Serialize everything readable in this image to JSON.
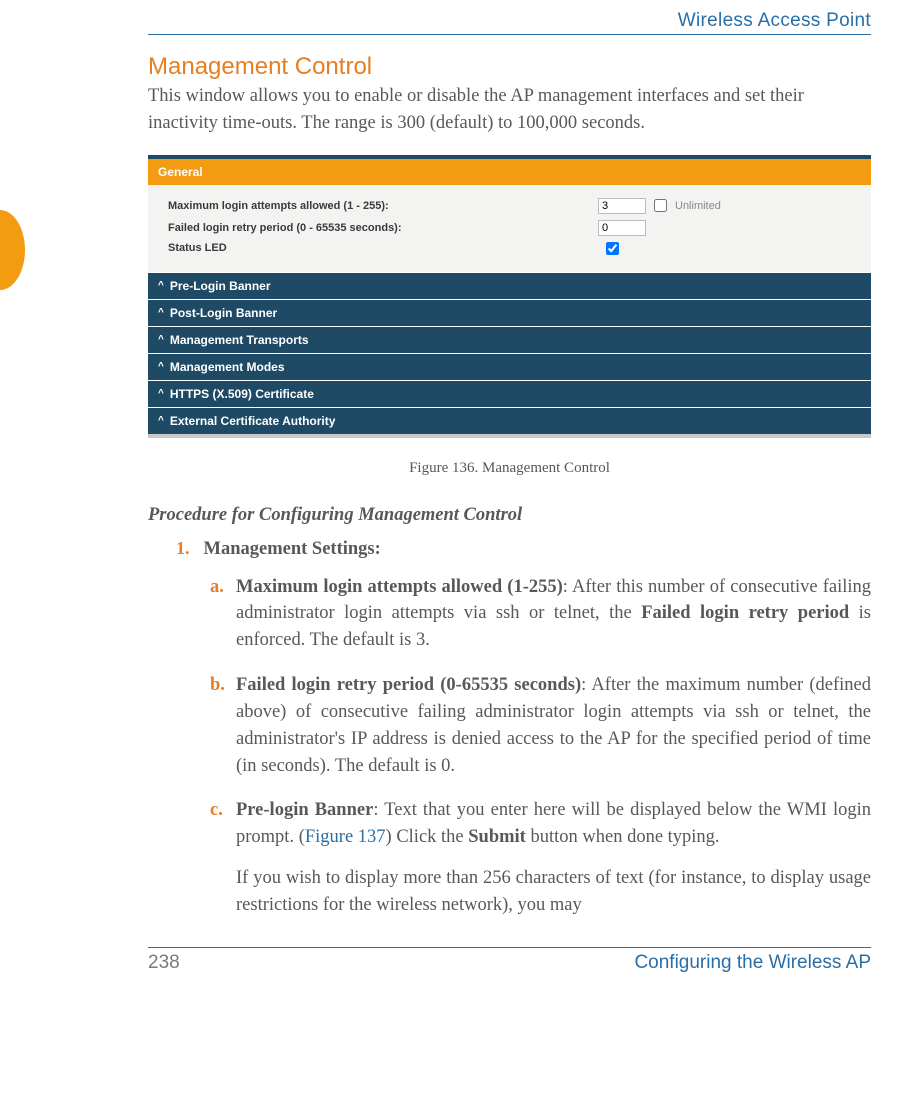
{
  "runningHead": "Wireless Access Point",
  "sectionTitle": "Management Control",
  "intro": "This window allows you to enable or disable the AP management interfaces and set their inactivity time-outs. The range is 300 (default) to 100,000 seconds.",
  "screenshot": {
    "generalHeader": "General",
    "rows": {
      "maxAttempts": {
        "label": "Maximum login attempts allowed (1 - 255):",
        "value": "3",
        "checkboxLabel": "Unlimited"
      },
      "retryPeriod": {
        "label": "Failed login retry period (0 - 65535 seconds):",
        "value": "0"
      },
      "statusLed": {
        "label": "Status LED"
      }
    },
    "collapsed": [
      "Pre-Login Banner",
      "Post-Login Banner",
      "Management Transports",
      "Management Modes",
      "HTTPS (X.509) Certificate",
      "External Certificate Authority"
    ]
  },
  "figureCaption": "Figure 136. Management Control",
  "procTitle": "Procedure for Configuring Management Control",
  "steps": {
    "s1": {
      "num": "1.",
      "title": "Management Settings:",
      "a": {
        "letter": "a.",
        "boldLead": "Maximum login attempts allowed (1-255)",
        "rest1": ": After this number of consecutive failing administrator login attempts via ssh or telnet, the ",
        "bold2": "Failed login retry period",
        "rest2": " is enforced. The default is 3."
      },
      "b": {
        "letter": "b.",
        "boldLead": "Failed login retry period (0-65535 seconds)",
        "rest": ": After the maximum number (defined above) of consecutive failing administrator login attempts via ssh or telnet, the administrator's IP address is denied access to the AP for the specified period of time (in seconds). The default is 0."
      },
      "c": {
        "letter": "c.",
        "boldLead": "Pre-login Banner",
        "rest1": ": Text that you enter here will be displayed below the WMI login prompt. (",
        "link": "Figure 137",
        "rest2": ") Click the ",
        "bold2": "Submit",
        "rest3": " button when done typing.",
        "para2": "If you wish to display more than 256 characters of text (for instance, to display usage restrictions for the wireless network), you may"
      }
    }
  },
  "footer": {
    "page": "238",
    "title": "Configuring the Wireless AP"
  }
}
